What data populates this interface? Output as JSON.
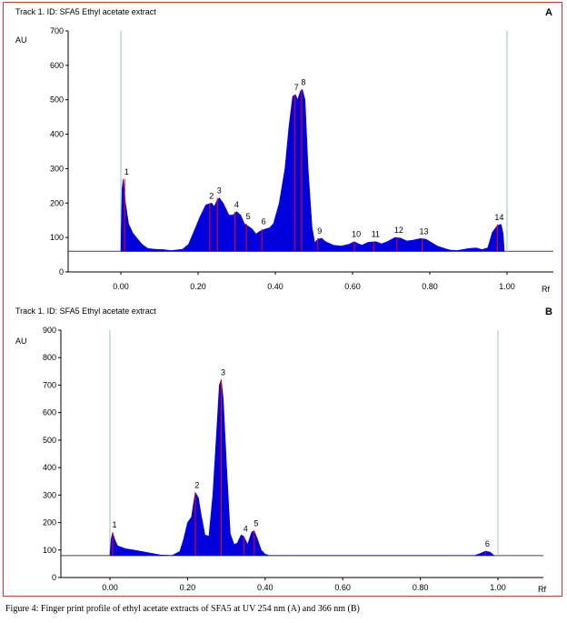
{
  "caption": "Figure 4: Finger print profile of ethyl acetate extracts of SFA5 at UV 254 nm (A) and 366 nm (B)",
  "colors": {
    "fill": "#0000dd",
    "peak_line": "#ff0000",
    "axis": "#000000",
    "marker": "#a8cfcf",
    "baseline_curve": "#7777cc",
    "frame": "#c0392b"
  },
  "chart_data": [
    {
      "type": "area",
      "panel_label": "A",
      "title": "Track 1. ID: SFA5 Ethyl acetate extract",
      "xlabel": "Rf",
      "ylabel": "AU",
      "xlim": [
        -0.15,
        1.12
      ],
      "ylim": [
        0,
        700
      ],
      "baseline": 60,
      "grid": false,
      "front_markers": [
        0.0,
        1.0
      ],
      "x_ticks": [
        "0.00",
        "0.20",
        "0.40",
        "0.60",
        "0.80",
        "1.00"
      ],
      "y_ticks": [
        "0",
        "100",
        "200",
        "300",
        "400",
        "500",
        "600",
        "700"
      ],
      "profile": [
        [
          0.0,
          60
        ],
        [
          0.003,
          240
        ],
        [
          0.006,
          270
        ],
        [
          0.012,
          200
        ],
        [
          0.02,
          140
        ],
        [
          0.03,
          115
        ],
        [
          0.04,
          100
        ],
        [
          0.055,
          80
        ],
        [
          0.07,
          68
        ],
        [
          0.09,
          66
        ],
        [
          0.11,
          65
        ],
        [
          0.13,
          62
        ],
        [
          0.16,
          66
        ],
        [
          0.175,
          80
        ],
        [
          0.19,
          120
        ],
        [
          0.205,
          160
        ],
        [
          0.22,
          195
        ],
        [
          0.235,
          200
        ],
        [
          0.242,
          190
        ],
        [
          0.25,
          210
        ],
        [
          0.255,
          215
        ],
        [
          0.265,
          200
        ],
        [
          0.28,
          165
        ],
        [
          0.29,
          165
        ],
        [
          0.3,
          175
        ],
        [
          0.31,
          165
        ],
        [
          0.32,
          140
        ],
        [
          0.327,
          135
        ],
        [
          0.34,
          125
        ],
        [
          0.35,
          110
        ],
        [
          0.36,
          118
        ],
        [
          0.375,
          125
        ],
        [
          0.385,
          128
        ],
        [
          0.395,
          140
        ],
        [
          0.41,
          200
        ],
        [
          0.425,
          300
        ],
        [
          0.435,
          420
        ],
        [
          0.445,
          510
        ],
        [
          0.452,
          515
        ],
        [
          0.458,
          500
        ],
        [
          0.465,
          525
        ],
        [
          0.47,
          530
        ],
        [
          0.477,
          500
        ],
        [
          0.485,
          300
        ],
        [
          0.495,
          130
        ],
        [
          0.502,
          85
        ],
        [
          0.51,
          95
        ],
        [
          0.52,
          98
        ],
        [
          0.53,
          88
        ],
        [
          0.55,
          78
        ],
        [
          0.57,
          75
        ],
        [
          0.59,
          80
        ],
        [
          0.605,
          88
        ],
        [
          0.615,
          82
        ],
        [
          0.625,
          78
        ],
        [
          0.64,
          86
        ],
        [
          0.66,
          88
        ],
        [
          0.675,
          82
        ],
        [
          0.69,
          88
        ],
        [
          0.71,
          100
        ],
        [
          0.725,
          98
        ],
        [
          0.74,
          90
        ],
        [
          0.755,
          92
        ],
        [
          0.775,
          97
        ],
        [
          0.79,
          95
        ],
        [
          0.805,
          85
        ],
        [
          0.82,
          75
        ],
        [
          0.85,
          64
        ],
        [
          0.87,
          62
        ],
        [
          0.9,
          68
        ],
        [
          0.92,
          70
        ],
        [
          0.935,
          65
        ],
        [
          0.95,
          70
        ],
        [
          0.962,
          115
        ],
        [
          0.975,
          135
        ],
        [
          0.985,
          138
        ],
        [
          0.99,
          110
        ],
        [
          0.993,
          60
        ]
      ],
      "peaks": [
        {
          "label": "1",
          "rf": 0.01,
          "au": 270
        },
        {
          "label": "2",
          "rf": 0.23,
          "au": 200
        },
        {
          "label": "3",
          "rf": 0.25,
          "au": 215
        },
        {
          "label": "4",
          "rf": 0.295,
          "au": 175
        },
        {
          "label": "5",
          "rf": 0.325,
          "au": 140
        },
        {
          "label": "6",
          "rf": 0.365,
          "au": 125
        },
        {
          "label": "7",
          "rf": 0.45,
          "au": 515
        },
        {
          "label": "8",
          "rf": 0.468,
          "au": 530
        },
        {
          "label": "9",
          "rf": 0.51,
          "au": 98
        },
        {
          "label": "10",
          "rf": 0.605,
          "au": 88
        },
        {
          "label": "11",
          "rf": 0.655,
          "au": 88
        },
        {
          "label": "12",
          "rf": 0.715,
          "au": 100
        },
        {
          "label": "13",
          "rf": 0.78,
          "au": 97
        },
        {
          "label": "14",
          "rf": 0.975,
          "au": 138
        }
      ]
    },
    {
      "type": "area",
      "panel_label": "B",
      "title": "Track 1. ID: SFA5 Ethyl acetate extract",
      "xlabel": "Rf",
      "ylabel": "AU",
      "xlim": [
        -0.13,
        1.11
      ],
      "ylim": [
        0,
        900
      ],
      "baseline": 80,
      "grid": false,
      "front_markers": [
        0.0,
        1.0
      ],
      "x_ticks": [
        "0.00",
        "0.20",
        "0.40",
        "0.60",
        "0.80",
        "1.00"
      ],
      "y_ticks": [
        "0",
        "100",
        "200",
        "300",
        "400",
        "500",
        "600",
        "700",
        "800",
        "900"
      ],
      "profile": [
        [
          0.0,
          80
        ],
        [
          0.003,
          140
        ],
        [
          0.007,
          165
        ],
        [
          0.012,
          140
        ],
        [
          0.02,
          115
        ],
        [
          0.04,
          105
        ],
        [
          0.07,
          98
        ],
        [
          0.1,
          90
        ],
        [
          0.13,
          82
        ],
        [
          0.16,
          80
        ],
        [
          0.18,
          95
        ],
        [
          0.19,
          140
        ],
        [
          0.2,
          200
        ],
        [
          0.21,
          220
        ],
        [
          0.22,
          310
        ],
        [
          0.228,
          290
        ],
        [
          0.235,
          230
        ],
        [
          0.245,
          155
        ],
        [
          0.255,
          150
        ],
        [
          0.265,
          300
        ],
        [
          0.275,
          530
        ],
        [
          0.282,
          700
        ],
        [
          0.287,
          720
        ],
        [
          0.292,
          650
        ],
        [
          0.3,
          420
        ],
        [
          0.31,
          160
        ],
        [
          0.32,
          120
        ],
        [
          0.328,
          125
        ],
        [
          0.338,
          155
        ],
        [
          0.345,
          150
        ],
        [
          0.355,
          120
        ],
        [
          0.365,
          165
        ],
        [
          0.372,
          170
        ],
        [
          0.38,
          140
        ],
        [
          0.39,
          100
        ],
        [
          0.4,
          85
        ],
        [
          0.41,
          80
        ],
        [
          0.94,
          80
        ],
        [
          0.955,
          88
        ],
        [
          0.968,
          96
        ],
        [
          0.98,
          92
        ],
        [
          0.99,
          80
        ]
      ],
      "peaks": [
        {
          "label": "1",
          "rf": 0.007,
          "au": 165
        },
        {
          "label": "2",
          "rf": 0.22,
          "au": 310
        },
        {
          "label": "3",
          "rf": 0.287,
          "au": 720
        },
        {
          "label": "4",
          "rf": 0.345,
          "au": 150
        },
        {
          "label": "5",
          "rf": 0.372,
          "au": 170
        },
        {
          "label": "6",
          "rf": 0.968,
          "au": 96
        }
      ]
    }
  ]
}
